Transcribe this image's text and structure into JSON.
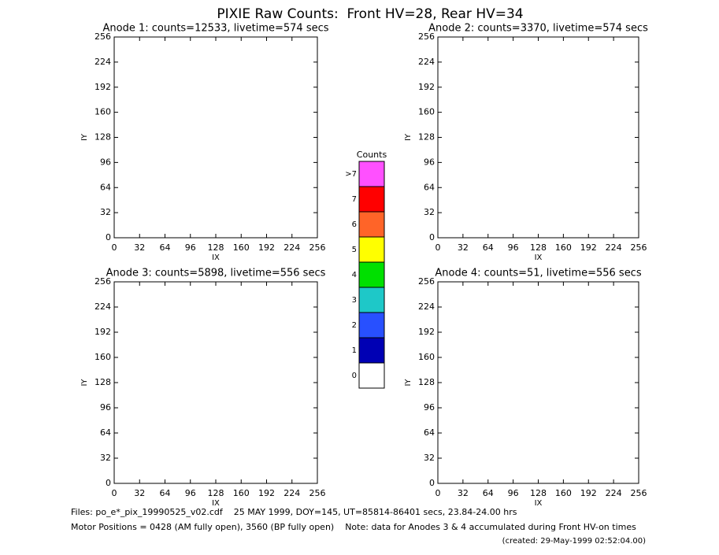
{
  "title": "PIXIE Raw Counts:  Front HV=28, Rear HV=34",
  "chart_data": [
    {
      "type": "heatmap",
      "title": "Anode 1: counts=12533, livetime=574 secs",
      "xlabel": "IX",
      "ylabel": "IY",
      "xlim": [
        0,
        256
      ],
      "ylim": [
        0,
        256
      ],
      "xticks": [
        0,
        32,
        64,
        96,
        128,
        160,
        192,
        224,
        256
      ],
      "yticks": [
        0,
        32,
        64,
        96,
        128,
        160,
        192,
        224,
        256
      ]
    },
    {
      "type": "heatmap",
      "title": "Anode 2: counts=3370, livetime=574 secs",
      "xlabel": "IX",
      "ylabel": "IY",
      "xlim": [
        0,
        256
      ],
      "ylim": [
        0,
        256
      ],
      "xticks": [
        0,
        32,
        64,
        96,
        128,
        160,
        192,
        224,
        256
      ],
      "yticks": [
        0,
        32,
        64,
        96,
        128,
        160,
        192,
        224,
        256
      ]
    },
    {
      "type": "heatmap",
      "title": "Anode 3: counts=5898, livetime=556 secs",
      "xlabel": "IX",
      "ylabel": "IY",
      "xlim": [
        0,
        256
      ],
      "ylim": [
        0,
        256
      ],
      "xticks": [
        0,
        32,
        64,
        96,
        128,
        160,
        192,
        224,
        256
      ],
      "yticks": [
        0,
        32,
        64,
        96,
        128,
        160,
        192,
        224,
        256
      ]
    },
    {
      "type": "heatmap",
      "title": "Anode 4: counts=51, livetime=556 secs",
      "xlabel": "IX",
      "ylabel": "IY",
      "xlim": [
        0,
        256
      ],
      "ylim": [
        0,
        256
      ],
      "xticks": [
        0,
        32,
        64,
        96,
        128,
        160,
        192,
        224,
        256
      ],
      "yticks": [
        0,
        32,
        64,
        96,
        128,
        160,
        192,
        224,
        256
      ]
    }
  ],
  "colorbar": {
    "title": "Counts",
    "levels": [
      {
        "label": "0",
        "color": "#ffffff"
      },
      {
        "label": "1",
        "color": "#0000b4"
      },
      {
        "label": "2",
        "color": "#2850ff"
      },
      {
        "label": "3",
        "color": "#1ec8c8"
      },
      {
        "label": "4",
        "color": "#00e000"
      },
      {
        "label": "5",
        "color": "#ffff00"
      },
      {
        "label": "6",
        "color": "#ff6428"
      },
      {
        "label": "7",
        "color": "#ff0000"
      },
      {
        "label": ">7",
        "color": "#ff50ff"
      }
    ]
  },
  "footer": {
    "files": "Files: po_e*_pix_19990525_v02.cdf    25 MAY 1999, DOY=145, UT=85814-86401 secs, 23.84-24.00 hrs",
    "motor": "Motor Positions = 0428 (AM fully open), 3560 (BP fully open)    Note: data for Anodes 3 & 4 accumulated during Front HV-on times",
    "created": "(created: 29-May-1999 02:52:04.00)"
  }
}
